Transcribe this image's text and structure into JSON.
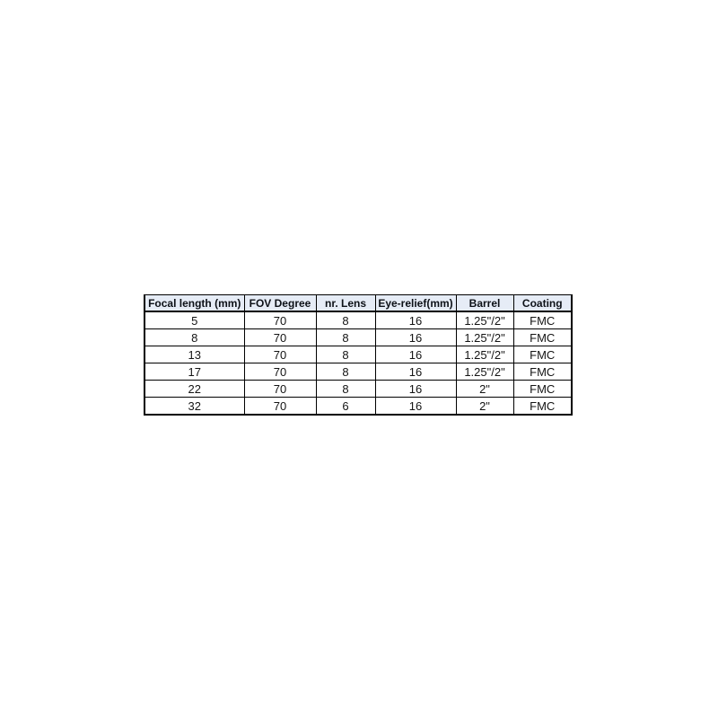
{
  "colors": {
    "header_bg": "#e6ecf6",
    "header_text": "#0d1117",
    "cell_text": "#141414",
    "border": "#000000",
    "page_bg": "#ffffff"
  },
  "table": {
    "columns": [
      "Focal length (mm)",
      "FOV Degree",
      "nr. Lens",
      "Eye-relief(mm)",
      "Barrel",
      "Coating"
    ],
    "rows": [
      [
        "5",
        "70",
        "8",
        "16",
        "1.25\"/2\"",
        "FMC"
      ],
      [
        "8",
        "70",
        "8",
        "16",
        "1.25\"/2\"",
        "FMC"
      ],
      [
        "13",
        "70",
        "8",
        "16",
        "1.25\"/2\"",
        "FMC"
      ],
      [
        "17",
        "70",
        "8",
        "16",
        "1.25\"/2\"",
        "FMC"
      ],
      [
        "22",
        "70",
        "8",
        "16",
        "2\"",
        "FMC"
      ],
      [
        "32",
        "70",
        "6",
        "16",
        "2\"",
        "FMC"
      ]
    ]
  },
  "chart_data": {
    "type": "table",
    "title": "",
    "columns": [
      "Focal length (mm)",
      "FOV Degree",
      "nr. Lens",
      "Eye-relief(mm)",
      "Barrel",
      "Coating"
    ],
    "rows": [
      {
        "focal_length_mm": 5,
        "fov_degree": 70,
        "nr_lens": 8,
        "eye_relief_mm": 16,
        "barrel": "1.25\"/2\"",
        "coating": "FMC"
      },
      {
        "focal_length_mm": 8,
        "fov_degree": 70,
        "nr_lens": 8,
        "eye_relief_mm": 16,
        "barrel": "1.25\"/2\"",
        "coating": "FMC"
      },
      {
        "focal_length_mm": 13,
        "fov_degree": 70,
        "nr_lens": 8,
        "eye_relief_mm": 16,
        "barrel": "1.25\"/2\"",
        "coating": "FMC"
      },
      {
        "focal_length_mm": 17,
        "fov_degree": 70,
        "nr_lens": 8,
        "eye_relief_mm": 16,
        "barrel": "1.25\"/2\"",
        "coating": "FMC"
      },
      {
        "focal_length_mm": 22,
        "fov_degree": 70,
        "nr_lens": 8,
        "eye_relief_mm": 16,
        "barrel": "2\"",
        "coating": "FMC"
      },
      {
        "focal_length_mm": 32,
        "fov_degree": 70,
        "nr_lens": 6,
        "eye_relief_mm": 16,
        "barrel": "2\"",
        "coating": "FMC"
      }
    ],
    "layout_hints": {
      "header_fill": "#e6ecf6",
      "gridlines": "black solid",
      "alignment": "center"
    }
  }
}
